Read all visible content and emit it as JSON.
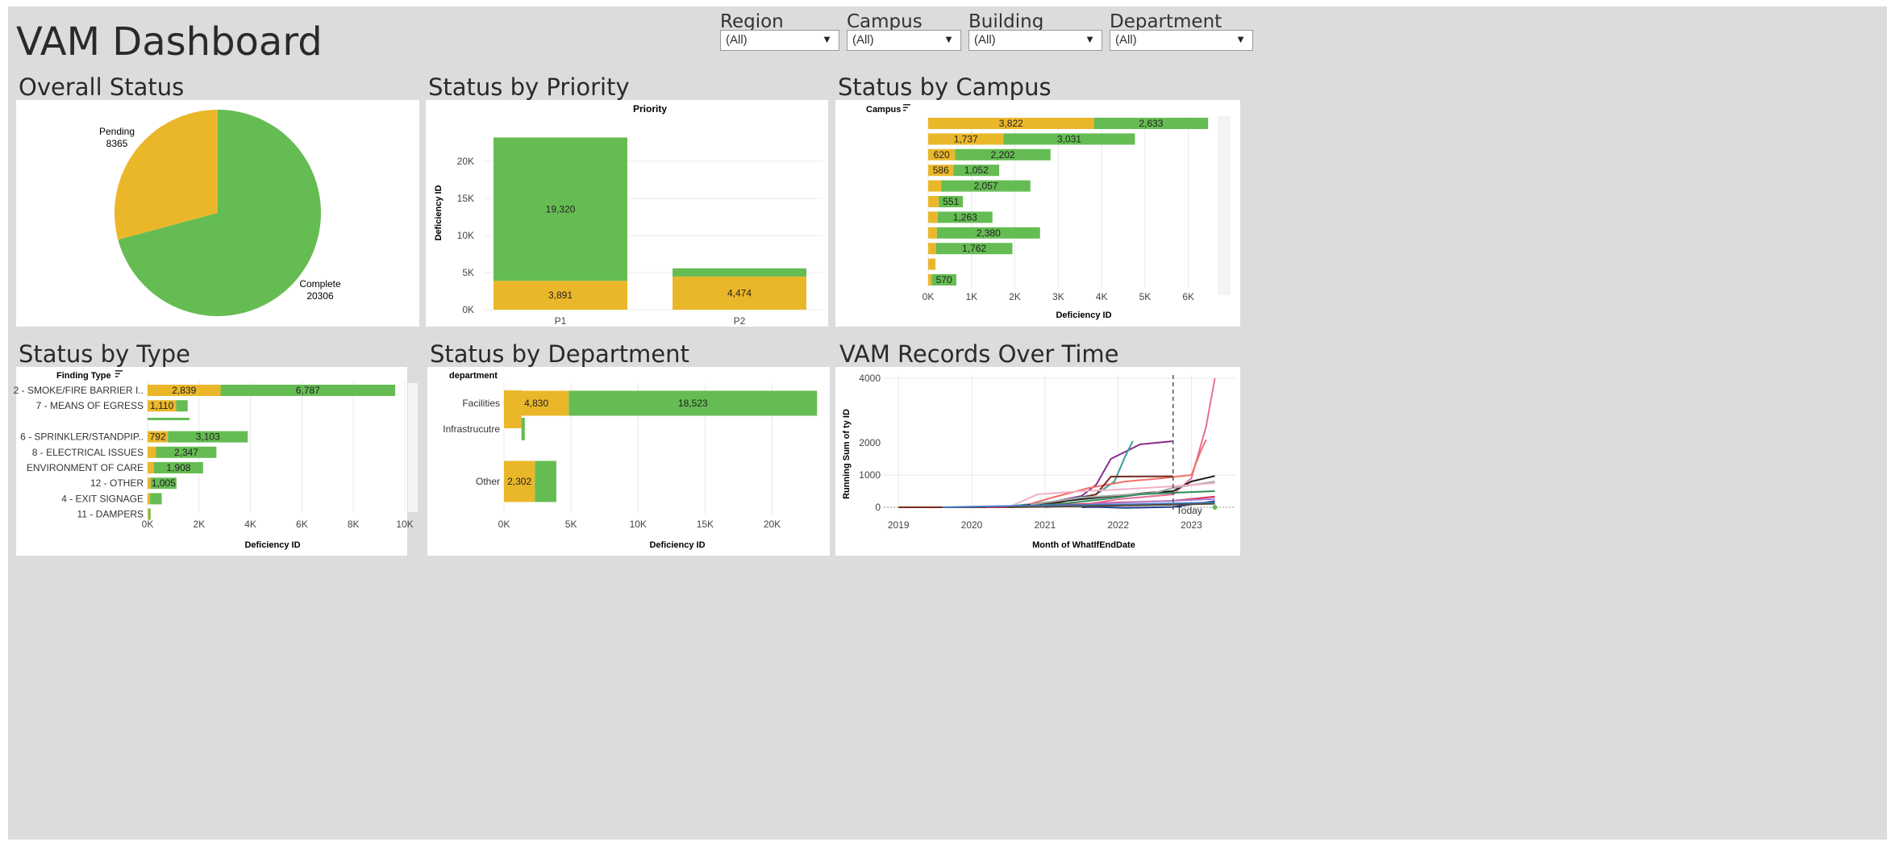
{
  "title": "VAM Dashboard",
  "filters": [
    {
      "label": "Region",
      "value": "(All)"
    },
    {
      "label": "Campus",
      "value": "(All)"
    },
    {
      "label": "Building",
      "value": "(All)"
    },
    {
      "label": "Department",
      "value": "(All)"
    }
  ],
  "sections": {
    "overall": "Overall Status",
    "priority": "Status by Priority",
    "campus": "Status by Campus",
    "type": "Status by Type",
    "department": "Status by Department",
    "records": "VAM Records Over Time"
  },
  "colors": {
    "pending": "#ebb72a",
    "complete": "#65bc53",
    "grid": "#e8e8e8",
    "today_line": "#555555"
  },
  "chart_data": [
    {
      "id": "overall",
      "type": "pie",
      "slices": [
        {
          "label": "Pending",
          "value": 8365
        },
        {
          "label": "Complete",
          "value": 20306
        }
      ],
      "labels": {
        "pending_name": "Pending",
        "pending_value": "8365",
        "complete_name": "Complete",
        "complete_value": "20306"
      }
    },
    {
      "id": "priority",
      "type": "bar",
      "stacked": true,
      "title": "Priority",
      "ylabel": "Deficiency ID",
      "categories": [
        "P1",
        "P2"
      ],
      "series": [
        {
          "name": "Pending",
          "values": [
            3891,
            4474
          ]
        },
        {
          "name": "Complete",
          "values": [
            19320,
            1100
          ]
        }
      ],
      "data_labels": {
        "pending": [
          "3,891",
          "4,474"
        ],
        "complete": [
          "19,320",
          ""
        ]
      },
      "ylim": [
        0,
        25000
      ],
      "yticks": [
        0,
        5000,
        10000,
        15000,
        20000
      ],
      "ytick_labels": [
        "0K",
        "5K",
        "10K",
        "15K",
        "20K"
      ]
    },
    {
      "id": "campus",
      "type": "bar",
      "orientation": "horizontal",
      "stacked": true,
      "title": "Campus",
      "xlabel": "Deficiency ID",
      "rows": [
        {
          "pending": 3822,
          "complete": 2633,
          "plabel": "3,822",
          "clabel": "2,633"
        },
        {
          "pending": 1737,
          "complete": 3031,
          "plabel": "1,737",
          "clabel": "3,031"
        },
        {
          "pending": 620,
          "complete": 2202,
          "plabel": "620",
          "clabel": "2,202"
        },
        {
          "pending": 586,
          "complete": 1052,
          "plabel": "586",
          "clabel": "1,052"
        },
        {
          "pending": 300,
          "complete": 2057,
          "plabel": "",
          "clabel": "2,057"
        },
        {
          "pending": 250,
          "complete": 551,
          "plabel": "",
          "clabel": "551"
        },
        {
          "pending": 220,
          "complete": 1263,
          "plabel": "",
          "clabel": "1,263"
        },
        {
          "pending": 200,
          "complete": 2380,
          "plabel": "",
          "clabel": "2,380"
        },
        {
          "pending": 180,
          "complete": 1762,
          "plabel": "",
          "clabel": "1,762"
        },
        {
          "pending": 170,
          "complete": 0,
          "plabel": "",
          "clabel": ""
        },
        {
          "pending": 80,
          "complete": 570,
          "plabel": "",
          "clabel": "570"
        }
      ],
      "xlim": [
        0,
        6600
      ],
      "xticks": [
        0,
        1000,
        2000,
        3000,
        4000,
        5000,
        6000
      ],
      "xtick_labels": [
        "0K",
        "1K",
        "2K",
        "3K",
        "4K",
        "5K",
        "6K"
      ]
    },
    {
      "id": "type",
      "type": "bar",
      "orientation": "horizontal",
      "stacked": true,
      "title": "Finding Type",
      "xlabel": "Deficiency ID",
      "categories": [
        "2 - SMOKE/FIRE BARRIER I..",
        "7 - MEANS OF EGRESS",
        "",
        "6 - SPRINKLER/STANDPIP..",
        "8 - ELECTRICAL ISSUES",
        "ENVIRONMENT OF CARE",
        "12 - OTHER",
        "4 - EXIT SIGNAGE",
        "11 - DAMPERS"
      ],
      "rows": [
        {
          "pending": 2839,
          "complete": 6787,
          "plabel": "2,839",
          "clabel": "6,787"
        },
        {
          "pending": 1110,
          "complete": 450,
          "plabel": "1,110",
          "clabel": ""
        },
        {
          "pending": 0,
          "complete": 0,
          "plabel": "",
          "clabel": ""
        },
        {
          "pending": 792,
          "complete": 3103,
          "plabel": "792",
          "clabel": "3,103"
        },
        {
          "pending": 330,
          "complete": 2347,
          "plabel": "",
          "clabel": "2,347"
        },
        {
          "pending": 250,
          "complete": 1908,
          "plabel": "",
          "clabel": "1,908"
        },
        {
          "pending": 120,
          "complete": 1005,
          "plabel": "",
          "clabel": "1,005"
        },
        {
          "pending": 100,
          "complete": 450,
          "plabel": "",
          "clabel": ""
        },
        {
          "pending": 40,
          "complete": 80,
          "plabel": "",
          "clabel": ""
        }
      ],
      "xlim": [
        0,
        10000
      ],
      "xticks": [
        0,
        2000,
        4000,
        6000,
        8000,
        10000
      ],
      "xtick_labels": [
        "0K",
        "2K",
        "4K",
        "6K",
        "8K",
        "10K"
      ]
    },
    {
      "id": "department",
      "type": "bar",
      "orientation": "horizontal",
      "stacked": true,
      "title": "department",
      "xlabel": "Deficiency ID",
      "categories": [
        "Facilities",
        "Infrastrucutre",
        "Other"
      ],
      "rows": [
        {
          "pending": 4830,
          "complete": 18523,
          "plabel": "4,830",
          "clabel": "18,523"
        },
        {
          "pending": 1300,
          "complete": 250,
          "plabel": "",
          "clabel": ""
        },
        {
          "pending": 2302,
          "complete": 1600,
          "plabel": "2,302",
          "clabel": ""
        }
      ],
      "xlim": [
        0,
        24000
      ],
      "xticks": [
        0,
        5000,
        10000,
        15000,
        20000
      ],
      "xtick_labels": [
        "0K",
        "5K",
        "10K",
        "15K",
        "20K"
      ]
    },
    {
      "id": "records",
      "type": "line",
      "ylabel": "Running Sum of ty ID",
      "xlabel": "Month of WhatIfEndDate",
      "xlim": [
        2018.8,
        2023.6
      ],
      "ylim": [
        -150,
        4100
      ],
      "xticks": [
        2019,
        2020,
        2021,
        2022,
        2023
      ],
      "xtick_labels": [
        "2019",
        "2020",
        "2021",
        "2022",
        "2023"
      ],
      "yticks": [
        0,
        1000,
        4000
      ],
      "ytick_labels": [
        "0",
        "1000",
        "4000"
      ],
      "extra_ytick": {
        "value": 2000,
        "label": "2000"
      },
      "today": {
        "x": 2022.75,
        "label": "Today"
      },
      "series": [
        {
          "name": "s1",
          "color": "#8b2b8f",
          "x": [
            2020.3,
            2021.0,
            2021.5,
            2021.7,
            2021.9,
            2022.3,
            2022.75
          ],
          "y": [
            0,
            120,
            350,
            700,
            1500,
            1950,
            2050
          ]
        },
        {
          "name": "s2",
          "color": "#e86d99",
          "x": [
            2021.6,
            2022.0,
            2022.75,
            2023.0,
            2023.2,
            2023.32
          ],
          "y": [
            100,
            250,
            400,
            900,
            2500,
            4000
          ]
        },
        {
          "name": "s3",
          "color": "#3a9e9a",
          "x": [
            2020.6,
            2021.2,
            2021.7,
            2021.95,
            2022.1,
            2022.2
          ],
          "y": [
            50,
            200,
            400,
            800,
            1600,
            2050
          ]
        },
        {
          "name": "s4",
          "color": "#f0706a",
          "x": [
            2020.7,
            2021.1,
            2021.6,
            2022.1,
            2022.6,
            2023.0,
            2023.12,
            2023.2
          ],
          "y": [
            40,
            300,
            600,
            800,
            900,
            1000,
            1700,
            2100
          ]
        },
        {
          "name": "s5",
          "color": "#7a2a1e",
          "x": [
            2019.0,
            2020.5,
            2021.2,
            2021.7,
            2021.9,
            2022.75
          ],
          "y": [
            0,
            0,
            150,
            400,
            950,
            960
          ]
        },
        {
          "name": "s6",
          "color": "#1c1c1c",
          "x": [
            2020.5,
            2021.5,
            2022.4,
            2022.75,
            2023.0,
            2023.32
          ],
          "y": [
            0,
            250,
            450,
            500,
            800,
            970
          ]
        },
        {
          "name": "s7",
          "color": "#a9a9a9",
          "x": [
            2020.8,
            2021.5,
            2022.5,
            2022.75,
            2023.32
          ],
          "y": [
            80,
            300,
            450,
            600,
            800
          ]
        },
        {
          "name": "s8",
          "color": "#efb0c8",
          "x": [
            2020.5,
            2020.9,
            2021.5,
            2022.0,
            2022.75,
            2023.32
          ],
          "y": [
            0,
            400,
            500,
            550,
            650,
            750
          ]
        },
        {
          "name": "s9",
          "color": "#2e8b57",
          "x": [
            2020.5,
            2021.2,
            2021.8,
            2022.3,
            2022.75,
            2023.32
          ],
          "y": [
            0,
            100,
            250,
            400,
            450,
            500
          ]
        },
        {
          "name": "s10",
          "color": "#d62e5c",
          "x": [
            2020.2,
            2021.0,
            2022.0,
            2022.75,
            2023.32
          ],
          "y": [
            0,
            50,
            150,
            200,
            330
          ]
        },
        {
          "name": "s11",
          "color": "#1f3f8f",
          "x": [
            2021.5,
            2021.7,
            2022.1,
            2022.75,
            2023.32
          ],
          "y": [
            0,
            10,
            -20,
            10,
            190
          ]
        },
        {
          "name": "s12",
          "color": "#b07ad0",
          "x": [
            2021.0,
            2021.8,
            2022.75,
            2023.32
          ],
          "y": [
            0,
            120,
            200,
            260
          ]
        },
        {
          "name": "s13",
          "color": "#3c7dc4",
          "x": [
            2019.6,
            2020.3,
            2021.0,
            2022.0,
            2022.75,
            2023.32
          ],
          "y": [
            0,
            30,
            60,
            80,
            120,
            150
          ]
        },
        {
          "name": "s14",
          "color": "#5a4a3a",
          "x": [
            2020.5,
            2021.5,
            2022.75,
            2023.32
          ],
          "y": [
            0,
            30,
            80,
            110
          ]
        }
      ]
    }
  ]
}
